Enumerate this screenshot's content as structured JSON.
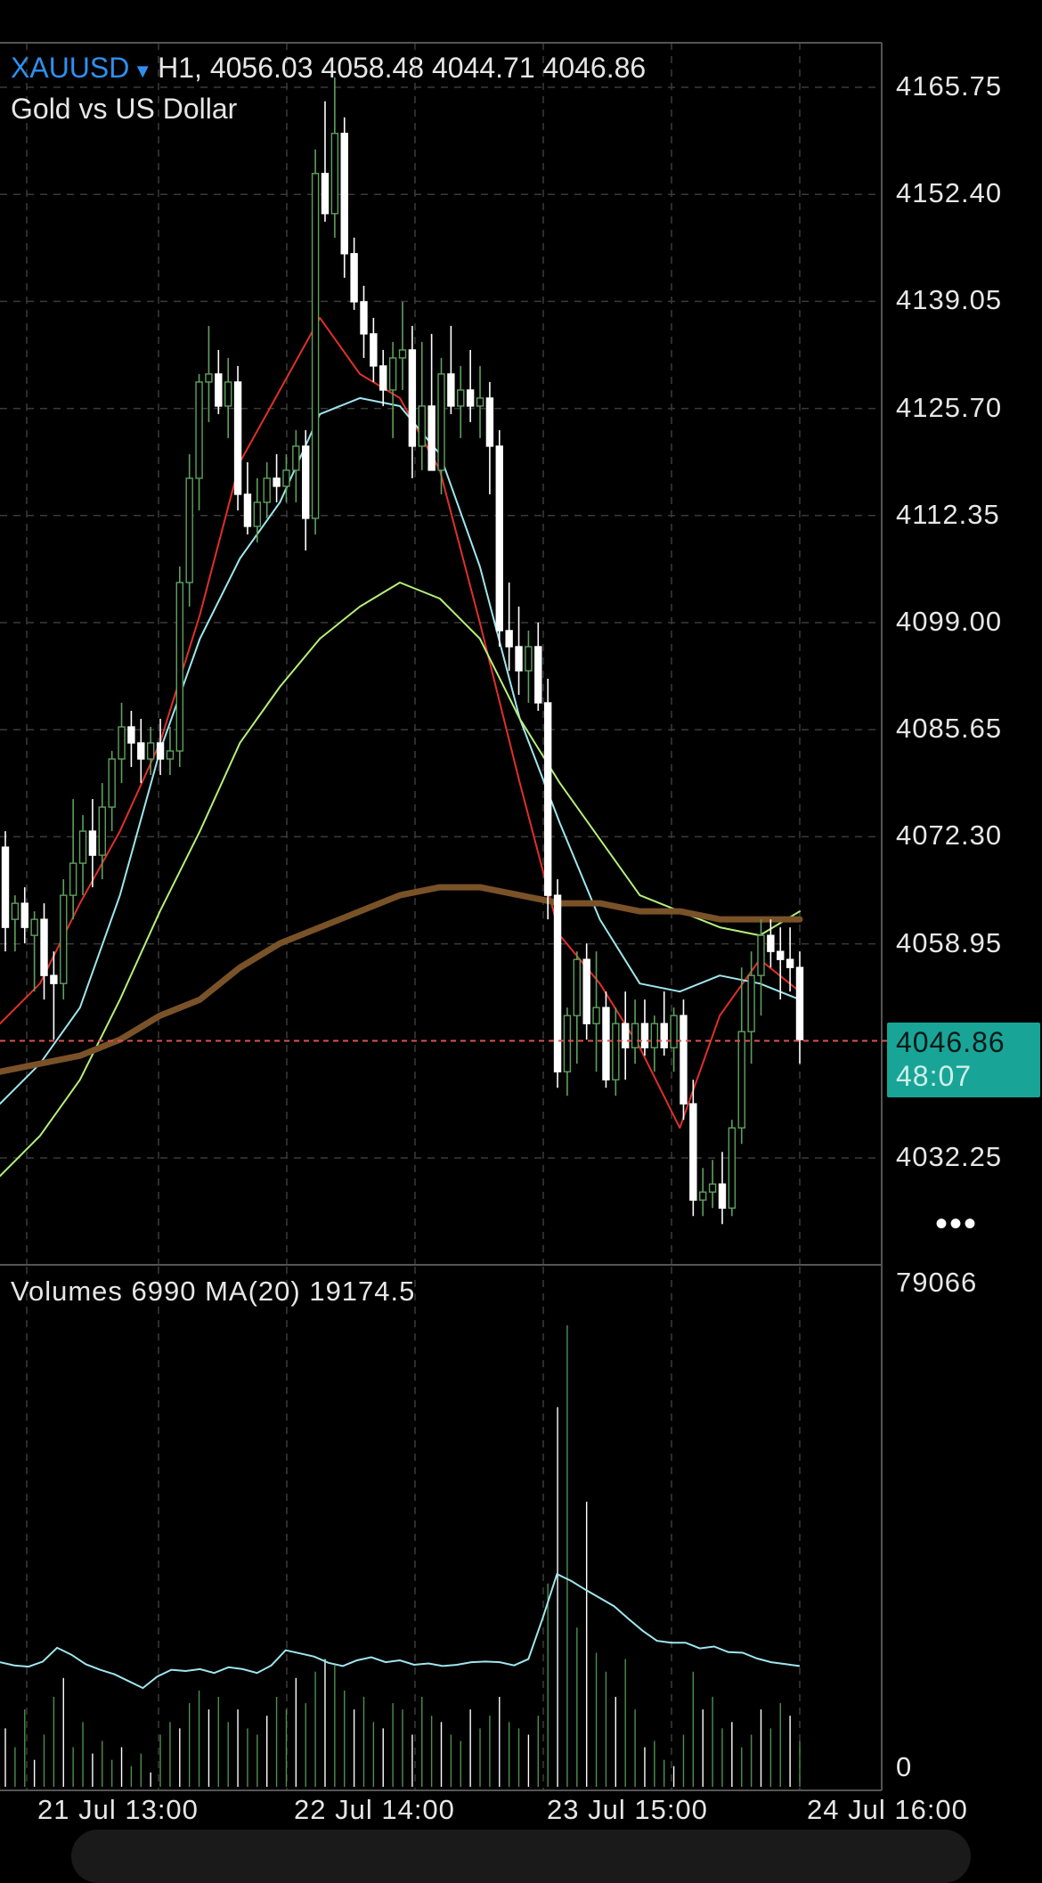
{
  "header": {
    "symbol": "XAUUSD",
    "timeframe": "H1,",
    "ohlc": "4056.03 4058.48 4044.71 4046.86",
    "description": "Gold vs US Dollar"
  },
  "price_tag": {
    "price": "4046.86",
    "countdown": "48:07"
  },
  "volume_header": "Volumes 6990 MA(20) 19174.5",
  "more_menu": "•••",
  "colors": {
    "background": "#000000",
    "grid": "#3a3a3a",
    "bull_candle": "#5fa05f",
    "bear_candle": "#ffffff",
    "ma_red": "#e0302a",
    "ma_cyan": "#9fe6ee",
    "ma_green": "#b6f07a",
    "ma_brown": "#7a5228",
    "price_line": "#e05050",
    "price_tag": "#18a597"
  },
  "chart_data": [
    {
      "type": "candlestick",
      "title": "XAUUSD H1",
      "y_ticks": [
        "4165.75",
        "4152.40",
        "4139.05",
        "4125.70",
        "4112.35",
        "4099.00",
        "4085.65",
        "4072.30",
        "4058.95",
        "4032.25"
      ],
      "x_ticks": [
        "21 Jul 13:00",
        "22 Jul 14:00",
        "23 Jul 15:00",
        "24 Jul 16:00"
      ],
      "ylim": [
        4025,
        4172
      ],
      "current_price": 4046.86,
      "candles": [
        [
          4071,
          4073,
          4058,
          4061
        ],
        [
          4062,
          4065,
          4058,
          4064
        ],
        [
          4064,
          4066,
          4059,
          4061
        ],
        [
          4060,
          4063,
          4053,
          4062
        ],
        [
          4062,
          4064,
          4052,
          4055
        ],
        [
          4055,
          4058,
          4047,
          4054
        ],
        [
          4054,
          4067,
          4052,
          4065
        ],
        [
          4065,
          4077,
          4062,
          4069
        ],
        [
          4069,
          4075,
          4065,
          4073
        ],
        [
          4073,
          4077,
          4066,
          4070
        ],
        [
          4070,
          4079,
          4067,
          4076
        ],
        [
          4076,
          4083,
          4073,
          4082
        ],
        [
          4082,
          4089,
          4079,
          4086
        ],
        [
          4086,
          4088,
          4081,
          4084
        ],
        [
          4084,
          4087,
          4079,
          4082
        ],
        [
          4082,
          4086,
          4080,
          4084
        ],
        [
          4084,
          4087,
          4080,
          4082
        ],
        [
          4082,
          4086,
          4080,
          4083
        ],
        [
          4083,
          4106,
          4081,
          4104
        ],
        [
          4104,
          4120,
          4101,
          4117
        ],
        [
          4117,
          4130,
          4113,
          4129
        ],
        [
          4129,
          4136,
          4124,
          4130
        ],
        [
          4130,
          4133,
          4125,
          4126
        ],
        [
          4126,
          4132,
          4122,
          4129
        ],
        [
          4129,
          4131,
          4113,
          4115
        ],
        [
          4115,
          4119,
          4110,
          4111
        ],
        [
          4111,
          4117,
          4109,
          4114
        ],
        [
          4114,
          4119,
          4112,
          4117
        ],
        [
          4117,
          4120,
          4114,
          4116
        ],
        [
          4116,
          4120,
          4114,
          4118
        ],
        [
          4118,
          4123,
          4114,
          4121
        ],
        [
          4121,
          4123,
          4108,
          4112
        ],
        [
          4112,
          4158,
          4110,
          4155
        ],
        [
          4155,
          4164,
          4149,
          4150
        ],
        [
          4150,
          4167,
          4147,
          4160
        ],
        [
          4160,
          4162,
          4142,
          4145
        ],
        [
          4145,
          4147,
          4138,
          4139
        ],
        [
          4139,
          4141,
          4132,
          4135
        ],
        [
          4135,
          4137,
          4129,
          4131
        ],
        [
          4131,
          4133,
          4126,
          4128
        ],
        [
          4128,
          4134,
          4122,
          4132
        ],
        [
          4132,
          4139,
          4128,
          4133
        ],
        [
          4133,
          4136,
          4117,
          4121
        ],
        [
          4121,
          4134,
          4118,
          4126
        ],
        [
          4126,
          4135,
          4118,
          4118
        ],
        [
          4118,
          4132,
          4115,
          4130
        ],
        [
          4130,
          4136,
          4125,
          4126
        ],
        [
          4126,
          4131,
          4122,
          4128
        ],
        [
          4128,
          4133,
          4124,
          4126
        ],
        [
          4126,
          4131,
          4122,
          4127
        ],
        [
          4127,
          4129,
          4115,
          4121
        ],
        [
          4121,
          4123,
          4096,
          4098
        ],
        [
          4098,
          4104,
          4093,
          4096
        ],
        [
          4096,
          4101,
          4090,
          4093
        ],
        [
          4093,
          4098,
          4089,
          4096
        ],
        [
          4096,
          4099,
          4088,
          4089
        ],
        [
          4089,
          4092,
          4062,
          4065
        ],
        [
          4065,
          4067,
          4041,
          4043
        ],
        [
          4043,
          4051,
          4040,
          4050
        ],
        [
          4050,
          4058,
          4044,
          4057
        ],
        [
          4057,
          4059,
          4047,
          4049
        ],
        [
          4049,
          4058,
          4043,
          4051
        ],
        [
          4051,
          4053,
          4041,
          4042
        ],
        [
          4042,
          4051,
          4040,
          4049
        ],
        [
          4049,
          4053,
          4042,
          4046
        ],
        [
          4046,
          4052,
          4044,
          4049
        ],
        [
          4049,
          4052,
          4045,
          4046
        ],
        [
          4046,
          4050,
          4043,
          4049
        ],
        [
          4049,
          4053,
          4045,
          4046
        ],
        [
          4046,
          4051,
          4043,
          4050
        ],
        [
          4050,
          4052,
          4037,
          4039
        ],
        [
          4039,
          4042,
          4025,
          4027
        ],
        [
          4027,
          4031,
          4025,
          4028
        ],
        [
          4028,
          4032,
          4026,
          4029
        ],
        [
          4029,
          4033,
          4024,
          4026
        ],
        [
          4026,
          4037,
          4025,
          4036
        ],
        [
          4036,
          4056,
          4034,
          4048
        ],
        [
          4048,
          4058,
          4044,
          4055
        ],
        [
          4055,
          4062,
          4050,
          4060
        ],
        [
          4060,
          4062,
          4056,
          4058
        ],
        [
          4058,
          4061,
          4052,
          4057
        ],
        [
          4057,
          4061,
          4053,
          4056
        ],
        [
          4056,
          4058,
          4044,
          4047
        ]
      ],
      "moving_averages": [
        {
          "name": "",
          "color": "#e0302a",
          "values": [
            4049,
            4054,
            4064,
            4073,
            4084,
            4100,
            4119,
            4128,
            4137,
            4130,
            4127,
            4118,
            4099,
            4079,
            4060,
            4054,
            4046,
            4036,
            4050,
            4057,
            4053
          ]
        },
        {
          "name": "",
          "color": "#9fe6ee",
          "values": [
            4039,
            4044,
            4051,
            4065,
            4083,
            4097,
            4107,
            4114,
            4125,
            4127,
            4126,
            4120,
            4106,
            4087,
            4074,
            4062,
            4054,
            4053,
            4055,
            4054,
            4052
          ]
        },
        {
          "name": "",
          "color": "#b6f07a",
          "values": [
            4030,
            4035,
            4042,
            4052,
            4063,
            4073,
            4084,
            4091,
            4097,
            4101,
            4104,
            4102,
            4097,
            4087,
            4079,
            4072,
            4065,
            4063,
            4061,
            4060,
            4063
          ]
        },
        {
          "name": "",
          "color": "#7a5228",
          "values": [
            4043,
            4044,
            4045,
            4047,
            4050,
            4052,
            4056,
            4059,
            4061,
            4063,
            4065,
            4066,
            4066,
            4065,
            4064,
            4064,
            4063,
            4063,
            4062,
            4062,
            4062
          ]
        }
      ]
    },
    {
      "type": "bar",
      "title": "Volumes",
      "y_ticks": [
        "79066",
        "0"
      ],
      "ylim": [
        0,
        79066
      ],
      "values": [
        9000,
        6000,
        12000,
        4000,
        8000,
        14000,
        17000,
        6000,
        10000,
        5000,
        7000,
        4000,
        6000,
        3000,
        5000,
        2000,
        8000,
        10000,
        9000,
        13000,
        15000,
        12000,
        14000,
        10000,
        12000,
        9000,
        8000,
        11000,
        14000,
        12000,
        17000,
        13000,
        18000,
        20000,
        19000,
        15000,
        12000,
        14000,
        10000,
        9000,
        13000,
        12000,
        8000,
        14000,
        11000,
        10000,
        8000,
        7000,
        12000,
        9000,
        11000,
        14000,
        10000,
        9000,
        8000,
        11000,
        32000,
        60000,
        73000,
        25000,
        45000,
        21000,
        18000,
        14000,
        20000,
        12000,
        6000,
        7000,
        4000,
        3000,
        8000,
        18000,
        12000,
        14000,
        9000,
        10000,
        6000,
        8000,
        12000,
        9000,
        13000,
        11000,
        6990
      ],
      "ma20_values": [
        19500,
        19000,
        18800,
        19600,
        21800,
        20700,
        19200,
        18300,
        17600,
        16500,
        15400,
        17200,
        18300,
        18100,
        18400,
        17800,
        18700,
        18400,
        17800,
        19000,
        21400,
        20900,
        20400,
        19400,
        18900,
        19800,
        20300,
        19500,
        19800,
        19100,
        19300,
        18900,
        19100,
        19500,
        19600,
        19500,
        19000,
        20000,
        26500,
        33500,
        32400,
        31000,
        29700,
        28400,
        26400,
        24500,
        22900,
        22600,
        22600,
        21700,
        22000,
        21100,
        21000,
        20100,
        19500,
        19200,
        18900
      ]
    }
  ]
}
